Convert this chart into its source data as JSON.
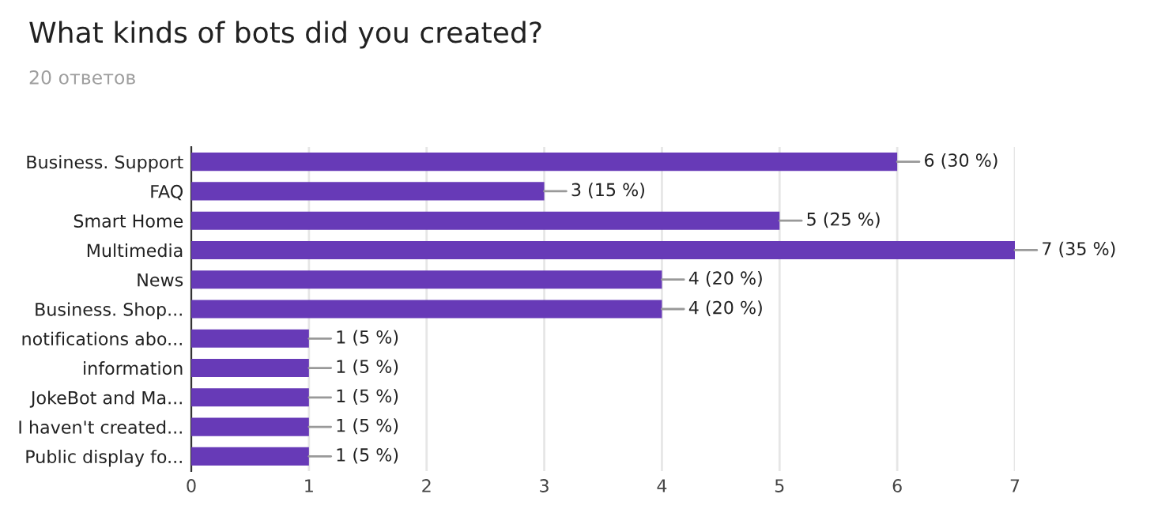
{
  "chart_data": {
    "type": "bar",
    "orientation": "horizontal",
    "title": "What kinds of bots did you created?",
    "subtitle": "20 ответов",
    "categories": [
      "Business. Support",
      "FAQ",
      "Smart Home",
      "Multimedia",
      "News",
      "Business. Shop...",
      "notifications abo...",
      "information",
      "JokeBot and Ma...",
      "I haven't created...",
      "Public display fo..."
    ],
    "values": [
      6,
      3,
      5,
      7,
      4,
      4,
      1,
      1,
      1,
      1,
      1
    ],
    "value_labels": [
      "6 (30 %)",
      "3 (15 %)",
      "5 (25 %)",
      "7 (35 %)",
      "4 (20 %)",
      "4 (20 %)",
      "1 (5 %)",
      "1 (5 %)",
      "1 (5 %)",
      "1 (5 %)",
      "1 (5 %)"
    ],
    "color": "#673ab7",
    "xlim": [
      0,
      7
    ],
    "xticks": [
      0,
      1,
      2,
      3,
      4,
      5,
      6,
      7
    ],
    "grid": "x",
    "legend": false
  }
}
